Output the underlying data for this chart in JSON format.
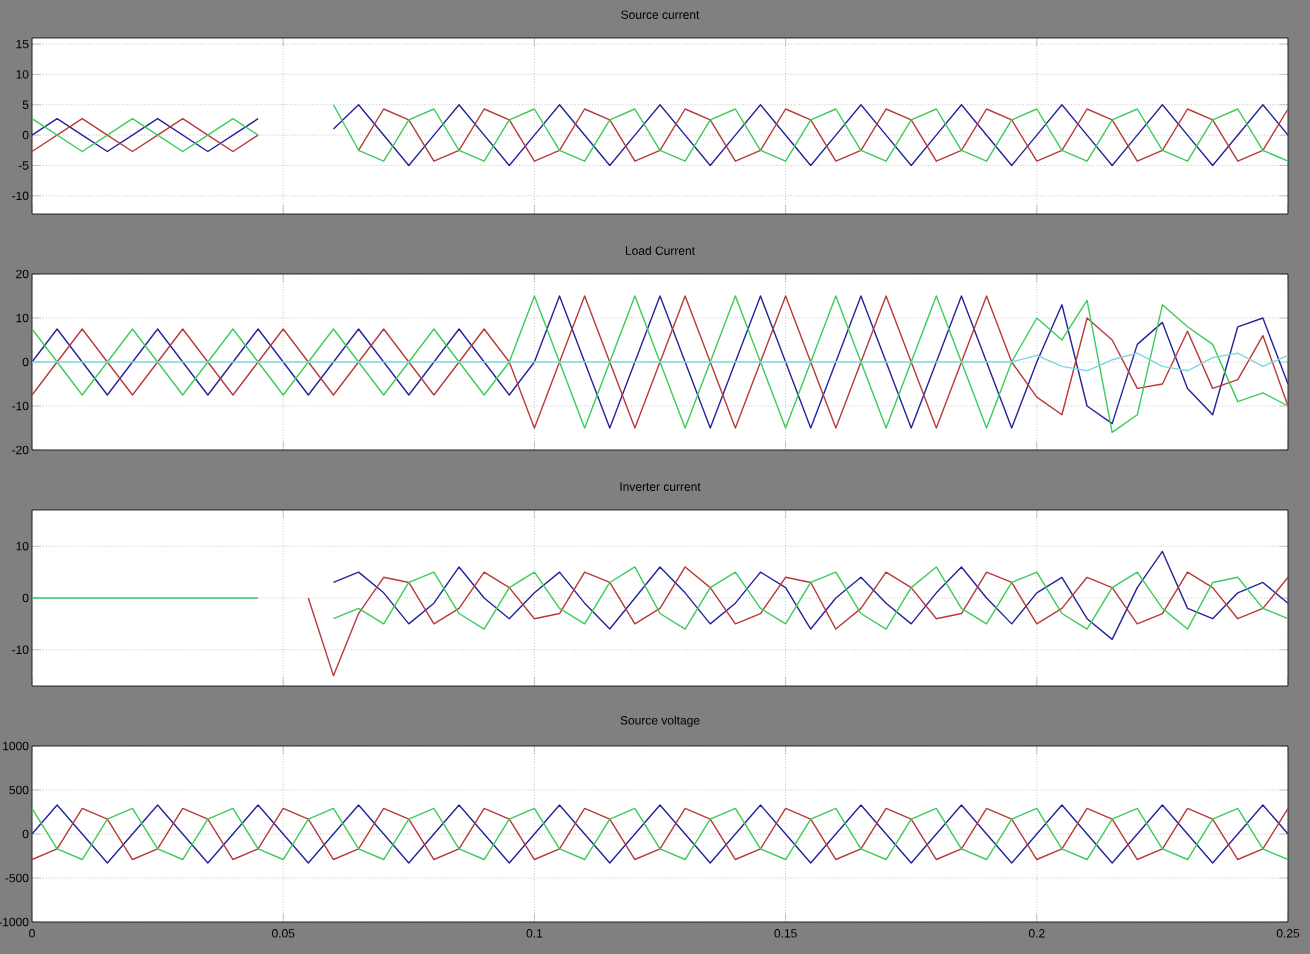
{
  "chart_data": [
    {
      "type": "line",
      "title": "Source current",
      "xlim": [
        0,
        0.25
      ],
      "ylim": [
        -13,
        16
      ],
      "yticks": [
        -10,
        -5,
        0,
        5,
        10,
        15
      ],
      "grid": true,
      "tick_labels": "y",
      "x": [
        0,
        0.005,
        0.01,
        0.015,
        0.02,
        0.025,
        0.03,
        0.035,
        0.04,
        0.045,
        0.05,
        0.055,
        0.06,
        0.065,
        0.07,
        0.075,
        0.08,
        0.085,
        0.09,
        0.095,
        0.1,
        0.105,
        0.11,
        0.115,
        0.12,
        0.125,
        0.13,
        0.135,
        0.14,
        0.145,
        0.15,
        0.155,
        0.16,
        0.165,
        0.17,
        0.175,
        0.18,
        0.185,
        0.19,
        0.195,
        0.2,
        0.205,
        0.21,
        0.215,
        0.22,
        0.225,
        0.23,
        0.235,
        0.24,
        0.245,
        0.25
      ],
      "series": [
        {
          "color": "#24249c",
          "values": [
            0,
            2.7,
            0,
            -2.7,
            0,
            2.7,
            0,
            -2.7,
            0,
            2.7,
            null,
            null,
            1,
            5,
            0,
            -5,
            0,
            5,
            0,
            -5,
            0,
            5,
            0,
            -5,
            0,
            5,
            0,
            -5,
            0,
            5,
            0,
            -5,
            0,
            5,
            0,
            -5,
            0,
            5,
            0,
            -5,
            0,
            5,
            0,
            -5,
            0,
            5,
            0,
            -5,
            0,
            5,
            0
          ]
        },
        {
          "color": "#b83a3a",
          "values": [
            -2.7,
            0,
            2.7,
            0,
            -2.7,
            0,
            2.7,
            0,
            -2.7,
            0,
            null,
            null,
            null,
            -2.5,
            4.3,
            2.5,
            -4.3,
            -2.5,
            4.3,
            2.5,
            -4.3,
            -2.5,
            4.3,
            2.5,
            -4.3,
            -2.5,
            4.3,
            2.5,
            -4.3,
            -2.5,
            4.3,
            2.5,
            -4.3,
            -2.5,
            4.3,
            2.5,
            -4.3,
            -2.5,
            4.3,
            2.5,
            -4.3,
            -2.5,
            4.3,
            2.5,
            -4.3,
            -2.5,
            4.3,
            2.5,
            -4.3,
            -2.5,
            4.3
          ]
        },
        {
          "color": "#3ccc5a",
          "values": [
            2.7,
            0,
            -2.7,
            0,
            2.7,
            0,
            -2.7,
            0,
            2.7,
            0,
            null,
            null,
            5,
            -2.5,
            -4.3,
            2.5,
            4.3,
            -2.5,
            -4.3,
            2.5,
            4.3,
            -2.5,
            -4.3,
            2.5,
            4.3,
            -2.5,
            -4.3,
            2.5,
            4.3,
            -2.5,
            -4.3,
            2.5,
            4.3,
            -2.5,
            -4.3,
            2.5,
            4.3,
            -2.5,
            -4.3,
            2.5,
            4.3,
            -2.5,
            -4.3,
            2.5,
            4.3,
            -2.5,
            -4.3,
            2.5,
            4.3,
            -2.5,
            -4.3
          ]
        }
      ]
    },
    {
      "type": "line",
      "title": "Load Current",
      "xlim": [
        0,
        0.25
      ],
      "ylim": [
        -20,
        20
      ],
      "yticks": [
        -20,
        -10,
        0,
        10,
        20
      ],
      "grid": true,
      "tick_labels": "y",
      "x": [
        0,
        0.005,
        0.01,
        0.015,
        0.02,
        0.025,
        0.03,
        0.035,
        0.04,
        0.045,
        0.05,
        0.055,
        0.06,
        0.065,
        0.07,
        0.075,
        0.08,
        0.085,
        0.09,
        0.095,
        0.1,
        0.105,
        0.11,
        0.115,
        0.12,
        0.125,
        0.13,
        0.135,
        0.14,
        0.145,
        0.15,
        0.155,
        0.16,
        0.165,
        0.17,
        0.175,
        0.18,
        0.185,
        0.19,
        0.195,
        0.2,
        0.205,
        0.21,
        0.215,
        0.22,
        0.225,
        0.23,
        0.235,
        0.24,
        0.245,
        0.25
      ],
      "series": [
        {
          "color": "#24249c",
          "values": [
            0,
            7.5,
            0,
            -7.5,
            0,
            7.5,
            0,
            -7.5,
            0,
            7.5,
            0,
            -7.5,
            0,
            7.5,
            0,
            -7.5,
            0,
            7.5,
            0,
            -7.5,
            0,
            15,
            0,
            -15,
            0,
            15,
            0,
            -15,
            0,
            15,
            0,
            -15,
            0,
            15,
            0,
            -15,
            0,
            15,
            0,
            -15,
            0,
            13,
            -10,
            -14,
            4,
            9,
            -6,
            -12,
            8,
            10,
            -5
          ]
        },
        {
          "color": "#b83a3a",
          "values": [
            -7.5,
            0,
            7.5,
            0,
            -7.5,
            0,
            7.5,
            0,
            -7.5,
            0,
            7.5,
            0,
            -7.5,
            0,
            7.5,
            0,
            -7.5,
            0,
            7.5,
            0,
            -15,
            0,
            15,
            0,
            -15,
            0,
            15,
            0,
            -15,
            0,
            15,
            0,
            -15,
            0,
            15,
            0,
            -15,
            0,
            15,
            0,
            -8,
            -12,
            10,
            5,
            -6,
            -5,
            7,
            -6,
            -4,
            6,
            -10
          ]
        },
        {
          "color": "#3ccc5a",
          "values": [
            7.5,
            0,
            -7.5,
            0,
            7.5,
            0,
            -7.5,
            0,
            7.5,
            0,
            -7.5,
            0,
            7.5,
            0,
            -7.5,
            0,
            7.5,
            0,
            -7.5,
            0,
            15,
            0,
            -15,
            0,
            15,
            0,
            -15,
            0,
            15,
            0,
            -15,
            0,
            15,
            0,
            -15,
            0,
            15,
            0,
            -15,
            0,
            10,
            5,
            14,
            -16,
            -12,
            13,
            8,
            4,
            -9,
            -7,
            -10
          ]
        },
        {
          "color": "#7fd6dc",
          "values": [
            0,
            0,
            0,
            0,
            0,
            0,
            0,
            0,
            0,
            0,
            0,
            0,
            0,
            0,
            0,
            0,
            0,
            0,
            0,
            0,
            0,
            0,
            0,
            0,
            0,
            0,
            0,
            0,
            0,
            0,
            0,
            0,
            0,
            0,
            0,
            0,
            0,
            0,
            0,
            0,
            1.5,
            -1,
            -2,
            0.5,
            2,
            -1,
            -2,
            1,
            2,
            -1,
            1.5
          ]
        }
      ]
    },
    {
      "type": "line",
      "title": "Inverter current",
      "xlim": [
        0,
        0.25
      ],
      "ylim": [
        -17,
        17
      ],
      "yticks": [
        -10,
        0,
        10
      ],
      "grid": true,
      "tick_labels": "y",
      "x": [
        0,
        0.005,
        0.01,
        0.015,
        0.02,
        0.025,
        0.03,
        0.035,
        0.04,
        0.045,
        0.05,
        0.055,
        0.06,
        0.065,
        0.07,
        0.075,
        0.08,
        0.085,
        0.09,
        0.095,
        0.1,
        0.105,
        0.11,
        0.115,
        0.12,
        0.125,
        0.13,
        0.135,
        0.14,
        0.145,
        0.15,
        0.155,
        0.16,
        0.165,
        0.17,
        0.175,
        0.18,
        0.185,
        0.19,
        0.195,
        0.2,
        0.205,
        0.21,
        0.215,
        0.22,
        0.225,
        0.23,
        0.235,
        0.24,
        0.245,
        0.25
      ],
      "series": [
        {
          "color": "#24249c",
          "values": [
            null,
            null,
            null,
            null,
            null,
            null,
            null,
            null,
            null,
            null,
            null,
            null,
            3,
            5,
            1,
            -5,
            -1,
            6,
            0,
            -4,
            1,
            5,
            -1,
            -6,
            0,
            6,
            1,
            -5,
            -1,
            5,
            2,
            -6,
            0,
            4,
            -1,
            -5,
            1,
            6,
            0,
            -5,
            1,
            4,
            -4,
            -8,
            2,
            9,
            -2,
            -4,
            1,
            3,
            -1
          ]
        },
        {
          "color": "#b83a3a",
          "values": [
            null,
            null,
            null,
            null,
            null,
            null,
            null,
            null,
            null,
            null,
            null,
            0,
            -15,
            -3,
            4,
            3,
            -5,
            -2,
            5,
            2,
            -4,
            -3,
            5,
            3,
            -5,
            -2,
            6,
            2,
            -5,
            -3,
            4,
            3,
            -6,
            -2,
            5,
            2,
            -4,
            -3,
            5,
            3,
            -5,
            -2,
            4,
            2,
            -5,
            -3,
            5,
            2,
            -4,
            -2,
            4
          ]
        },
        {
          "color": "#3ccc5a",
          "values": [
            0,
            0,
            0,
            0,
            0,
            0,
            0,
            0,
            0,
            0,
            null,
            null,
            -4,
            -2,
            -5,
            3,
            5,
            -3,
            -6,
            2,
            5,
            -2,
            -5,
            3,
            6,
            -3,
            -6,
            2,
            5,
            -2,
            -5,
            3,
            5,
            -3,
            -6,
            2,
            6,
            -2,
            -5,
            3,
            5,
            -3,
            -6,
            2,
            5,
            -2,
            -6,
            3,
            4,
            -2,
            -4
          ]
        }
      ]
    },
    {
      "type": "line",
      "title": "Source voltage",
      "xlim": [
        0,
        0.25
      ],
      "ylim": [
        -1000,
        1000
      ],
      "yticks": [
        -1000,
        -500,
        0,
        500,
        1000
      ],
      "xticks": [
        0,
        0.05,
        0.1,
        0.15,
        0.2,
        0.25
      ],
      "grid": true,
      "x": [
        0,
        0.005,
        0.01,
        0.015,
        0.02,
        0.025,
        0.03,
        0.035,
        0.04,
        0.045,
        0.05,
        0.055,
        0.06,
        0.065,
        0.07,
        0.075,
        0.08,
        0.085,
        0.09,
        0.095,
        0.1,
        0.105,
        0.11,
        0.115,
        0.12,
        0.125,
        0.13,
        0.135,
        0.14,
        0.145,
        0.15,
        0.155,
        0.16,
        0.165,
        0.17,
        0.175,
        0.18,
        0.185,
        0.19,
        0.195,
        0.2,
        0.205,
        0.21,
        0.215,
        0.22,
        0.225,
        0.23,
        0.235,
        0.24,
        0.245,
        0.25
      ],
      "series": [
        {
          "color": "#24249c",
          "values": [
            0,
            330,
            0,
            -330,
            0,
            330,
            0,
            -330,
            0,
            330,
            0,
            -330,
            0,
            330,
            0,
            -330,
            0,
            330,
            0,
            -330,
            0,
            330,
            0,
            -330,
            0,
            330,
            0,
            -330,
            0,
            330,
            0,
            -330,
            0,
            330,
            0,
            -330,
            0,
            330,
            0,
            -330,
            0,
            330,
            0,
            -330,
            0,
            330,
            0,
            -330,
            0,
            330,
            0
          ]
        },
        {
          "color": "#b83a3a",
          "values": [
            -290,
            -170,
            290,
            170,
            -290,
            -170,
            290,
            170,
            -290,
            -170,
            290,
            170,
            -290,
            -170,
            290,
            170,
            -290,
            -170,
            290,
            170,
            -290,
            -170,
            290,
            170,
            -290,
            -170,
            290,
            170,
            -290,
            -170,
            290,
            170,
            -290,
            -170,
            290,
            170,
            -290,
            -170,
            290,
            170,
            -290,
            -170,
            290,
            170,
            -290,
            -170,
            290,
            170,
            -290,
            -170,
            290
          ]
        },
        {
          "color": "#3ccc5a",
          "values": [
            290,
            -170,
            -290,
            170,
            290,
            -170,
            -290,
            170,
            290,
            -170,
            -290,
            170,
            290,
            -170,
            -290,
            170,
            290,
            -170,
            -290,
            170,
            290,
            -170,
            -290,
            170,
            290,
            -170,
            -290,
            170,
            290,
            -170,
            -290,
            170,
            290,
            -170,
            -290,
            170,
            290,
            -170,
            -290,
            170,
            290,
            -170,
            -290,
            170,
            290,
            -170,
            -290,
            170,
            290,
            -170,
            -290
          ]
        }
      ]
    }
  ]
}
